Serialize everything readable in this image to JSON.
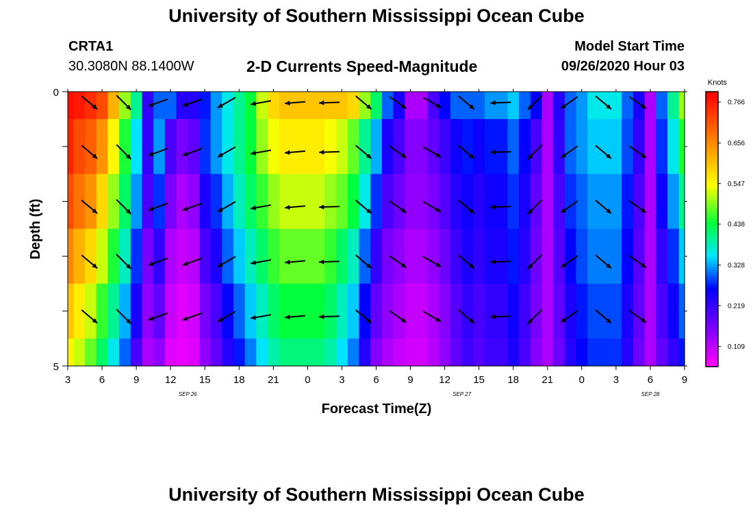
{
  "header": {
    "title": "University of Southern Mississippi Ocean Cube",
    "station_id": "CRTA1",
    "station_coords": "30.3080N 88.1400W",
    "chart_title": "2-D Currents Speed-Magnitude",
    "model_start_label": "Model Start Time",
    "model_start_value": "09/26/2020 Hour 03"
  },
  "footer": {
    "title": "University of Southern Mississippi Ocean Cube"
  },
  "chart_data": {
    "type": "heatmap",
    "title": "2-D Currents Speed-Magnitude",
    "xlabel": "Forecast Time(Z)",
    "ylabel": "Depth (ft)",
    "x_tick_labels": [
      "3",
      "6",
      "9",
      "12",
      "15",
      "18",
      "21",
      "0",
      "3",
      "6",
      "9",
      "12",
      "15",
      "18",
      "21",
      "0",
      "3",
      "6",
      "9"
    ],
    "date_labels": [
      {
        "label": "SEP 26",
        "at_tick": 3.5
      },
      {
        "label": "SEP 27",
        "at_tick": 11.5
      },
      {
        "label": "SEP 28",
        "at_tick": 17
      }
    ],
    "y_tick_labels": [
      "0",
      "5"
    ],
    "ylim": [
      0,
      5
    ],
    "colorbar": {
      "label": "Knots",
      "range": [
        0.055,
        0.794
      ],
      "ticks": [
        "0.766",
        "0.656",
        "0.547",
        "0.438",
        "0.328",
        "0.219",
        "0.109"
      ]
    },
    "depth_rows_ft": [
      0.25,
      1.0,
      2.0,
      3.0,
      4.0,
      4.75
    ],
    "hours_from_start": [
      0,
      1,
      2,
      3,
      4,
      5,
      6,
      7,
      8,
      9,
      10,
      11,
      12,
      13,
      14,
      15,
      16,
      17,
      18,
      19,
      20,
      21,
      22,
      23,
      24,
      25,
      26,
      27,
      28,
      29,
      30,
      31,
      32,
      33,
      34,
      35,
      36,
      37,
      38,
      39,
      40,
      41,
      42,
      43,
      44,
      45,
      46,
      47,
      48,
      49,
      50,
      51,
      52,
      53,
      54
    ],
    "speed_knots": [
      [
        0.78,
        0.77,
        0.75,
        0.72,
        0.62,
        0.5,
        0.4,
        0.22,
        0.3,
        0.3,
        0.23,
        0.23,
        0.27,
        0.32,
        0.36,
        0.4,
        0.44,
        0.52,
        0.58,
        0.6,
        0.6,
        0.6,
        0.6,
        0.6,
        0.6,
        0.58,
        0.5,
        0.42,
        0.3,
        0.24,
        0.12,
        0.12,
        0.2,
        0.26,
        0.3,
        0.3,
        0.3,
        0.32,
        0.32,
        0.34,
        0.3,
        0.26,
        0.12,
        0.23,
        0.3,
        0.32,
        0.36,
        0.36,
        0.36,
        0.3,
        0.24,
        0.12,
        0.3,
        0.4,
        0.5
      ],
      [
        0.76,
        0.72,
        0.7,
        0.65,
        0.55,
        0.45,
        0.35,
        0.22,
        0.32,
        0.2,
        0.16,
        0.18,
        0.28,
        0.32,
        0.36,
        0.4,
        0.44,
        0.5,
        0.54,
        0.56,
        0.56,
        0.56,
        0.56,
        0.54,
        0.52,
        0.48,
        0.4,
        0.33,
        0.24,
        0.2,
        0.15,
        0.15,
        0.18,
        0.21,
        0.25,
        0.27,
        0.25,
        0.27,
        0.27,
        0.3,
        0.26,
        0.2,
        0.12,
        0.22,
        0.3,
        0.32,
        0.34,
        0.34,
        0.34,
        0.29,
        0.22,
        0.12,
        0.28,
        0.36,
        0.45
      ],
      [
        0.72,
        0.68,
        0.65,
        0.58,
        0.5,
        0.42,
        0.32,
        0.2,
        0.28,
        0.16,
        0.12,
        0.14,
        0.24,
        0.28,
        0.33,
        0.38,
        0.42,
        0.46,
        0.5,
        0.52,
        0.52,
        0.52,
        0.52,
        0.5,
        0.48,
        0.44,
        0.36,
        0.28,
        0.2,
        0.17,
        0.14,
        0.14,
        0.16,
        0.19,
        0.23,
        0.25,
        0.23,
        0.25,
        0.25,
        0.28,
        0.24,
        0.18,
        0.12,
        0.2,
        0.28,
        0.3,
        0.32,
        0.32,
        0.32,
        0.27,
        0.2,
        0.12,
        0.25,
        0.32,
        0.4
      ],
      [
        0.66,
        0.62,
        0.58,
        0.52,
        0.45,
        0.38,
        0.28,
        0.16,
        0.22,
        0.12,
        0.1,
        0.11,
        0.2,
        0.24,
        0.3,
        0.34,
        0.38,
        0.42,
        0.46,
        0.48,
        0.48,
        0.48,
        0.48,
        0.46,
        0.42,
        0.38,
        0.3,
        0.22,
        0.16,
        0.14,
        0.12,
        0.12,
        0.14,
        0.17,
        0.21,
        0.24,
        0.22,
        0.24,
        0.24,
        0.27,
        0.23,
        0.17,
        0.12,
        0.19,
        0.26,
        0.29,
        0.31,
        0.31,
        0.31,
        0.26,
        0.19,
        0.12,
        0.22,
        0.28,
        0.34
      ],
      [
        0.6,
        0.56,
        0.52,
        0.46,
        0.4,
        0.33,
        0.24,
        0.14,
        0.18,
        0.1,
        0.08,
        0.09,
        0.16,
        0.2,
        0.26,
        0.3,
        0.34,
        0.38,
        0.42,
        0.44,
        0.44,
        0.44,
        0.44,
        0.42,
        0.38,
        0.34,
        0.26,
        0.18,
        0.14,
        0.12,
        0.1,
        0.1,
        0.12,
        0.15,
        0.19,
        0.22,
        0.2,
        0.22,
        0.22,
        0.25,
        0.21,
        0.16,
        0.12,
        0.18,
        0.24,
        0.27,
        0.29,
        0.29,
        0.29,
        0.24,
        0.18,
        0.12,
        0.2,
        0.25,
        0.3
      ],
      [
        0.55,
        0.52,
        0.48,
        0.42,
        0.36,
        0.3,
        0.2,
        0.12,
        0.14,
        0.08,
        0.07,
        0.08,
        0.14,
        0.18,
        0.23,
        0.27,
        0.31,
        0.35,
        0.39,
        0.41,
        0.41,
        0.41,
        0.41,
        0.39,
        0.35,
        0.31,
        0.23,
        0.15,
        0.12,
        0.1,
        0.09,
        0.09,
        0.11,
        0.14,
        0.18,
        0.21,
        0.19,
        0.21,
        0.21,
        0.24,
        0.2,
        0.15,
        0.12,
        0.17,
        0.23,
        0.26,
        0.28,
        0.28,
        0.28,
        0.23,
        0.17,
        0.12,
        0.18,
        0.22,
        0.27
      ]
    ]
  }
}
